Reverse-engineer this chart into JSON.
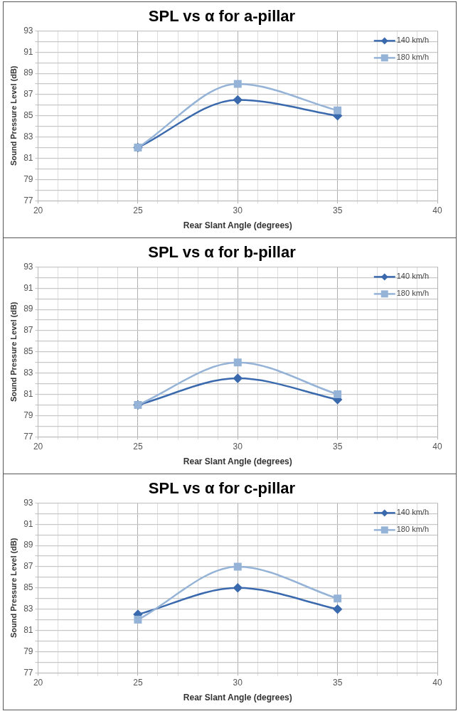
{
  "chart_data": [
    {
      "type": "line",
      "title": "SPL vs α for a-pillar",
      "xlabel": "Rear Slant Angle (degrees)",
      "ylabel": "Sound Pressure Level (dB)",
      "x": [
        25,
        30,
        35
      ],
      "series": [
        {
          "name": "140 km/h",
          "color": "#3a6aad",
          "marker": "diamond",
          "values": [
            82,
            86.5,
            85
          ]
        },
        {
          "name": "180 km/h",
          "color": "#95b3d7",
          "marker": "square",
          "values": [
            82,
            88,
            85.5
          ]
        }
      ],
      "xlim": [
        20,
        40
      ],
      "xticks": [
        20,
        {
          "value": 21,
          "label": null
        },
        {
          "value": 22,
          "label": null
        },
        {
          "value": 23,
          "label": null
        },
        {
          "value": 24,
          "label": null
        },
        25,
        {
          "value": 26,
          "label": null
        },
        {
          "value": 27,
          "label": null
        },
        {
          "value": 28,
          "label": null
        },
        {
          "value": 29,
          "label": null
        },
        30,
        {
          "value": 31,
          "label": null
        },
        {
          "value": 32,
          "label": null
        },
        {
          "value": 33,
          "label": null
        },
        {
          "value": 34,
          "label": null
        },
        35,
        {
          "value": 36,
          "label": null
        },
        {
          "value": 37,
          "label": null
        },
        {
          "value": 38,
          "label": null
        },
        {
          "value": 39,
          "label": null
        },
        40
      ],
      "ylim": [
        77,
        93
      ],
      "yticks": [
        77,
        {
          "value": 78,
          "label": null
        },
        79,
        {
          "value": 80,
          "label": null
        },
        81,
        {
          "value": 82,
          "label": null
        },
        83,
        {
          "value": 84,
          "label": null
        },
        85,
        {
          "value": 86,
          "label": null
        },
        87,
        {
          "value": 88,
          "label": null
        },
        89,
        {
          "value": 90,
          "label": null
        },
        91,
        {
          "value": 92,
          "label": null
        },
        93
      ],
      "grid": true,
      "legend": "top right",
      "line_style": "solid"
    },
    {
      "type": "line",
      "title": "SPL vs α for b-pillar",
      "xlabel": "Rear Slant Angle (degrees)",
      "ylabel": "Sound Pressure Level (dB)",
      "x": [
        25,
        30,
        35
      ],
      "series": [
        {
          "name": "140 km/h",
          "color": "#3a6aad",
          "marker": "diamond",
          "values": [
            80,
            82.5,
            80.5
          ]
        },
        {
          "name": "180 km/h",
          "color": "#95b3d7",
          "marker": "square",
          "values": [
            80,
            84,
            81
          ]
        }
      ],
      "xlim": [
        20,
        40
      ],
      "xticks": [
        20,
        {
          "value": 21,
          "label": null
        },
        {
          "value": 22,
          "label": null
        },
        {
          "value": 23,
          "label": null
        },
        {
          "value": 24,
          "label": null
        },
        25,
        {
          "value": 26,
          "label": null
        },
        {
          "value": 27,
          "label": null
        },
        {
          "value": 28,
          "label": null
        },
        {
          "value": 29,
          "label": null
        },
        30,
        {
          "value": 31,
          "label": null
        },
        {
          "value": 32,
          "label": null
        },
        {
          "value": 33,
          "label": null
        },
        {
          "value": 34,
          "label": null
        },
        35,
        {
          "value": 36,
          "label": null
        },
        {
          "value": 37,
          "label": null
        },
        {
          "value": 38,
          "label": null
        },
        {
          "value": 39,
          "label": null
        },
        40
      ],
      "ylim": [
        77,
        93
      ],
      "yticks": [
        77,
        {
          "value": 78,
          "label": null
        },
        79,
        {
          "value": 80,
          "label": null
        },
        81,
        {
          "value": 82,
          "label": null
        },
        83,
        {
          "value": 84,
          "label": null
        },
        85,
        {
          "value": 86,
          "label": null
        },
        87,
        {
          "value": 88,
          "label": null
        },
        89,
        {
          "value": 90,
          "label": null
        },
        91,
        {
          "value": 92,
          "label": null
        },
        93
      ],
      "grid": true,
      "legend": "top right",
      "line_style": "solid"
    },
    {
      "type": "line",
      "title": "SPL vs α for c-pillar",
      "xlabel": "Rear Slant Angle (degrees)",
      "ylabel": "Sound Pressure Level (dB)",
      "x": [
        25,
        30,
        35
      ],
      "series": [
        {
          "name": "140 km/h",
          "color": "#3a6aad",
          "marker": "diamond",
          "values": [
            82.5,
            85,
            83
          ]
        },
        {
          "name": "180 km/h",
          "color": "#95b3d7",
          "marker": "square",
          "values": [
            82,
            87,
            84
          ]
        }
      ],
      "xlim": [
        20,
        40
      ],
      "xticks": [
        20,
        {
          "value": 21,
          "label": null
        },
        {
          "value": 22,
          "label": null
        },
        {
          "value": 23,
          "label": null
        },
        {
          "value": 24,
          "label": null
        },
        25,
        {
          "value": 26,
          "label": null
        },
        {
          "value": 27,
          "label": null
        },
        {
          "value": 28,
          "label": null
        },
        {
          "value": 29,
          "label": null
        },
        30,
        {
          "value": 31,
          "label": null
        },
        {
          "value": 32,
          "label": null
        },
        {
          "value": 33,
          "label": null
        },
        {
          "value": 34,
          "label": null
        },
        35,
        {
          "value": 36,
          "label": null
        },
        {
          "value": 37,
          "label": null
        },
        {
          "value": 38,
          "label": null
        },
        {
          "value": 39,
          "label": null
        },
        40
      ],
      "ylim": [
        77,
        93
      ],
      "yticks": [
        77,
        {
          "value": 78,
          "label": null
        },
        79,
        {
          "value": 80,
          "label": null
        },
        81,
        {
          "value": 82,
          "label": null
        },
        83,
        {
          "value": 84,
          "label": null
        },
        85,
        {
          "value": 86,
          "label": null
        },
        87,
        {
          "value": 88,
          "label": null
        },
        89,
        {
          "value": 90,
          "label": null
        },
        91,
        {
          "value": 92,
          "label": null
        },
        93
      ],
      "grid": true,
      "legend": "top right",
      "line_style": "solid"
    }
  ]
}
